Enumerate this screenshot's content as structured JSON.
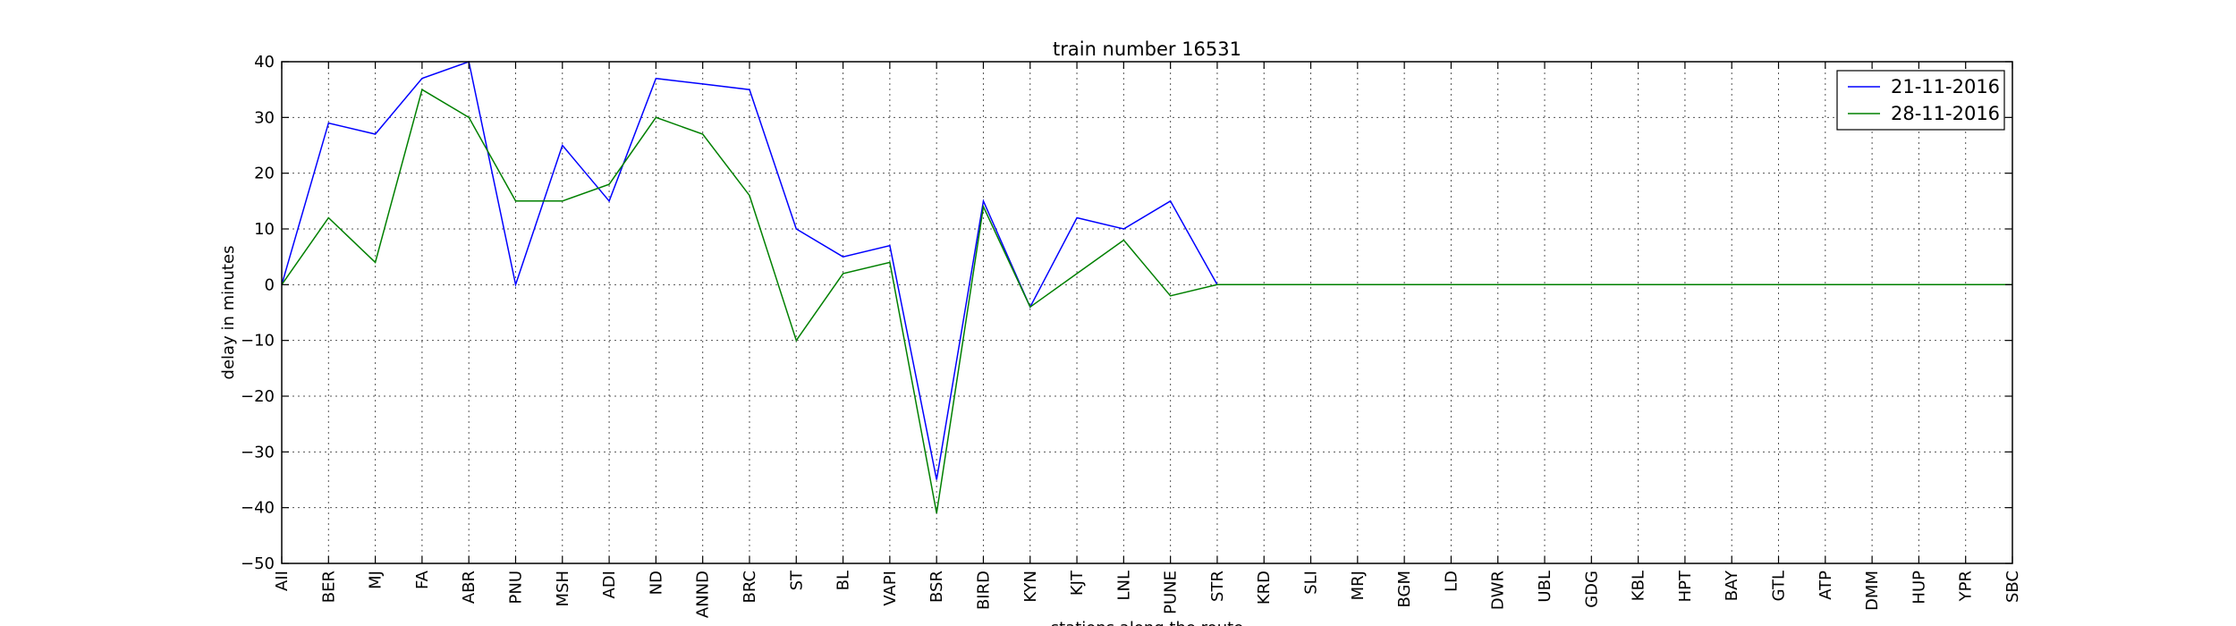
{
  "chart_data": {
    "type": "line",
    "title": "train number 16531",
    "xlabel": "stations along the route",
    "ylabel": "delay in minutes",
    "ylim": [
      -50,
      40
    ],
    "yticks": [
      -50,
      -40,
      -30,
      -20,
      -10,
      0,
      10,
      20,
      30,
      40
    ],
    "grid": true,
    "legend_position": "top-right",
    "categories": [
      "AII",
      "BER",
      "MJ",
      "FA",
      "ABR",
      "PNU",
      "MSH",
      "ADI",
      "ND",
      "ANND",
      "BRC",
      "ST",
      "BL",
      "VAPI",
      "BSR",
      "BIRD",
      "KYN",
      "KJT",
      "LNL",
      "PUNE",
      "STR",
      "KRD",
      "SLI",
      "MRJ",
      "BGM",
      "LD",
      "DWR",
      "UBL",
      "GDG",
      "KBL",
      "HPT",
      "BAY",
      "GTL",
      "ATP",
      "DMM",
      "HUP",
      "YPR",
      "SBC"
    ],
    "series": [
      {
        "name": "21-11-2016",
        "color": "#0000ff",
        "values": [
          0,
          29,
          27,
          37,
          40,
          0,
          25,
          15,
          37,
          36,
          35,
          10,
          5,
          7,
          -35,
          15,
          -4,
          12,
          10,
          15,
          0,
          0,
          0,
          0,
          0,
          0,
          0,
          0,
          0,
          0,
          0,
          0,
          0,
          0,
          0,
          0,
          0,
          0
        ]
      },
      {
        "name": "28-11-2016",
        "color": "#008000",
        "values": [
          0,
          12,
          4,
          35,
          30,
          15,
          15,
          18,
          30,
          27,
          16,
          -10,
          2,
          4,
          -41,
          14,
          -4,
          2,
          8,
          -2,
          0,
          0,
          0,
          0,
          0,
          0,
          0,
          0,
          0,
          0,
          0,
          0,
          0,
          0,
          0,
          0,
          0,
          0
        ]
      }
    ]
  }
}
